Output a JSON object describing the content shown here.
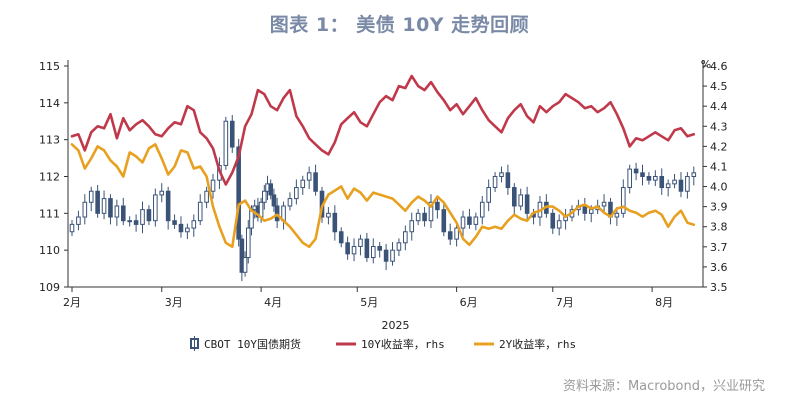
{
  "title": "图表 1： 美债 10Y 走势回顾",
  "source": "资料来源：Macrobond，兴业研究",
  "chart_data": {
    "type": "line",
    "x_axis": {
      "year_label": "2025",
      "months": [
        {
          "label": "2月",
          "day": 0
        },
        {
          "label": "3月",
          "day": 28
        },
        {
          "label": "4月",
          "day": 59
        },
        {
          "label": "5月",
          "day": 89
        },
        {
          "label": "6月",
          "day": 120
        },
        {
          "label": "7月",
          "day": 150
        },
        {
          "label": "8月",
          "day": 181
        }
      ],
      "max_day": 195
    },
    "y_left": {
      "min": 109,
      "max": 115,
      "ticks": [
        "109",
        "110",
        "111",
        "112",
        "113",
        "114",
        "115"
      ]
    },
    "y_right": {
      "unit": "%",
      "min": 3.5,
      "max": 4.6,
      "ticks": [
        "3.5",
        "3.6",
        "3.7",
        "3.8",
        "3.9",
        "4.0",
        "4.1",
        "4.2",
        "4.3",
        "4.4",
        "4.5",
        "4.6"
      ]
    },
    "colors": {
      "candle": "#3a5377",
      "y10": "#c0394b",
      "y2": "#e8a020"
    },
    "series": [
      {
        "key": "futures",
        "name": "CBOT 10Y国债期货",
        "axis": "left",
        "kind": "candlestick",
        "x": [
          0,
          2,
          4,
          6,
          8,
          10,
          12,
          14,
          16,
          18,
          20,
          22,
          24,
          26,
          28,
          30,
          32,
          34,
          36,
          38,
          40,
          42,
          44,
          46,
          48,
          50,
          52,
          53,
          54,
          55,
          56,
          57,
          58,
          59,
          60,
          61,
          62,
          63,
          64,
          66,
          68,
          70,
          72,
          74,
          76,
          78,
          80,
          82,
          84,
          86,
          88,
          90,
          92,
          94,
          96,
          98,
          100,
          102,
          104,
          106,
          108,
          110,
          112,
          114,
          116,
          118,
          120,
          122,
          124,
          126,
          128,
          130,
          132,
          134,
          136,
          138,
          140,
          142,
          144,
          146,
          148,
          150,
          152,
          154,
          156,
          158,
          160,
          162,
          164,
          166,
          168,
          170,
          172,
          174,
          176,
          178,
          180,
          182,
          184,
          186,
          188,
          190,
          192,
          194
        ],
        "close": [
          110.7,
          110.9,
          111.3,
          111.6,
          111.0,
          111.4,
          110.9,
          111.2,
          110.8,
          110.8,
          110.7,
          111.1,
          110.8,
          111.5,
          111.6,
          110.8,
          110.7,
          110.5,
          110.6,
          110.8,
          111.3,
          111.6,
          111.9,
          112.3,
          113.5,
          112.8,
          110.3,
          109.4,
          109.8,
          110.6,
          111.1,
          111.2,
          110.9,
          111.3,
          111.6,
          111.8,
          111.5,
          111.2,
          110.8,
          111.2,
          111.4,
          111.7,
          111.9,
          112.1,
          111.6,
          110.9,
          111.0,
          110.5,
          110.2,
          109.9,
          110.1,
          110.3,
          109.8,
          110.1,
          110.0,
          109.7,
          110.0,
          110.2,
          110.5,
          110.8,
          111.0,
          110.8,
          111.3,
          111.1,
          110.5,
          110.3,
          110.6,
          110.9,
          110.7,
          110.9,
          111.3,
          111.7,
          112.0,
          112.1,
          111.7,
          111.2,
          111.5,
          111.0,
          110.9,
          111.3,
          111.0,
          110.6,
          110.8,
          110.9,
          111.1,
          111.2,
          111.0,
          111.1,
          111.2,
          111.3,
          110.9,
          111.0,
          111.7,
          112.2,
          112.1,
          112.0,
          111.9,
          112.0,
          111.7,
          111.8,
          111.9,
          111.6,
          112.0,
          112.1
        ]
      },
      {
        "key": "y10",
        "name": "10Y收益率，rhs",
        "axis": "right",
        "kind": "line",
        "x": [
          0,
          2,
          4,
          6,
          8,
          10,
          12,
          14,
          16,
          18,
          20,
          22,
          24,
          26,
          28,
          30,
          32,
          34,
          36,
          38,
          40,
          42,
          44,
          46,
          48,
          50,
          52,
          54,
          56,
          58,
          60,
          62,
          64,
          66,
          68,
          70,
          72,
          74,
          76,
          78,
          80,
          82,
          84,
          86,
          88,
          90,
          92,
          94,
          96,
          98,
          100,
          102,
          104,
          106,
          108,
          110,
          112,
          114,
          116,
          118,
          120,
          122,
          124,
          126,
          128,
          130,
          132,
          134,
          136,
          138,
          140,
          142,
          144,
          146,
          148,
          150,
          152,
          154,
          156,
          158,
          160,
          162,
          164,
          166,
          168,
          170,
          172,
          174,
          176,
          178,
          180,
          182,
          184,
          186,
          188,
          190,
          192,
          194
        ],
        "values": [
          4.25,
          4.26,
          4.18,
          4.27,
          4.3,
          4.29,
          4.36,
          4.24,
          4.34,
          4.28,
          4.31,
          4.33,
          4.3,
          4.26,
          4.25,
          4.29,
          4.32,
          4.31,
          4.4,
          4.38,
          4.27,
          4.24,
          4.19,
          4.08,
          4.01,
          4.07,
          4.15,
          4.3,
          4.36,
          4.48,
          4.46,
          4.4,
          4.38,
          4.44,
          4.48,
          4.35,
          4.3,
          4.24,
          4.21,
          4.18,
          4.16,
          4.22,
          4.31,
          4.34,
          4.37,
          4.32,
          4.3,
          4.36,
          4.42,
          4.45,
          4.43,
          4.5,
          4.49,
          4.55,
          4.5,
          4.48,
          4.52,
          4.47,
          4.43,
          4.38,
          4.41,
          4.36,
          4.4,
          4.44,
          4.38,
          4.33,
          4.3,
          4.27,
          4.34,
          4.38,
          4.41,
          4.35,
          4.32,
          4.4,
          4.37,
          4.4,
          4.42,
          4.46,
          4.44,
          4.42,
          4.39,
          4.4,
          4.37,
          4.39,
          4.42,
          4.36,
          4.29,
          4.2,
          4.24,
          4.23,
          4.25,
          4.27,
          4.25,
          4.23,
          4.28,
          4.29,
          4.25,
          4.26
        ]
      },
      {
        "key": "y2",
        "name": "2Y收益率，rhs",
        "axis": "right",
        "kind": "line",
        "x": [
          0,
          2,
          4,
          6,
          8,
          10,
          12,
          14,
          16,
          18,
          20,
          22,
          24,
          26,
          28,
          30,
          32,
          34,
          36,
          38,
          40,
          42,
          44,
          46,
          48,
          50,
          52,
          54,
          56,
          58,
          60,
          62,
          64,
          66,
          68,
          70,
          72,
          74,
          76,
          78,
          80,
          82,
          84,
          86,
          88,
          90,
          92,
          94,
          96,
          98,
          100,
          102,
          104,
          106,
          108,
          110,
          112,
          114,
          116,
          118,
          120,
          122,
          124,
          126,
          128,
          130,
          132,
          134,
          136,
          138,
          140,
          142,
          144,
          146,
          148,
          150,
          152,
          154,
          156,
          158,
          160,
          162,
          164,
          166,
          168,
          170,
          172,
          174,
          176,
          178,
          180,
          182,
          184,
          186,
          188,
          190,
          192,
          194
        ],
        "values": [
          4.21,
          4.18,
          4.09,
          4.14,
          4.2,
          4.18,
          4.13,
          4.1,
          4.05,
          4.17,
          4.15,
          4.12,
          4.19,
          4.21,
          4.14,
          4.06,
          4.1,
          4.18,
          4.17,
          4.09,
          4.1,
          4.05,
          3.9,
          3.8,
          3.72,
          3.7,
          3.91,
          3.93,
          3.88,
          3.86,
          3.83,
          3.84,
          3.86,
          3.83,
          3.8,
          3.76,
          3.72,
          3.7,
          3.74,
          3.9,
          3.96,
          3.98,
          4.0,
          3.94,
          3.99,
          3.97,
          3.93,
          3.97,
          3.96,
          3.95,
          3.94,
          3.91,
          3.88,
          3.92,
          3.95,
          3.93,
          3.9,
          3.95,
          3.92,
          3.87,
          3.82,
          3.74,
          3.71,
          3.75,
          3.8,
          3.79,
          3.8,
          3.79,
          3.83,
          3.86,
          3.84,
          3.83,
          3.87,
          3.88,
          3.9,
          3.9,
          3.88,
          3.85,
          3.87,
          3.9,
          3.91,
          3.89,
          3.9,
          3.87,
          3.85,
          3.89,
          3.9,
          3.88,
          3.87,
          3.85,
          3.87,
          3.88,
          3.86,
          3.8,
          3.85,
          3.88,
          3.82,
          3.81
        ]
      }
    ],
    "legend": {
      "placement": "bottom",
      "items": [
        "CBOT 10Y国债期货",
        "10Y收益率，rhs",
        "2Y收益率，rhs"
      ]
    },
    "grid": false
  }
}
